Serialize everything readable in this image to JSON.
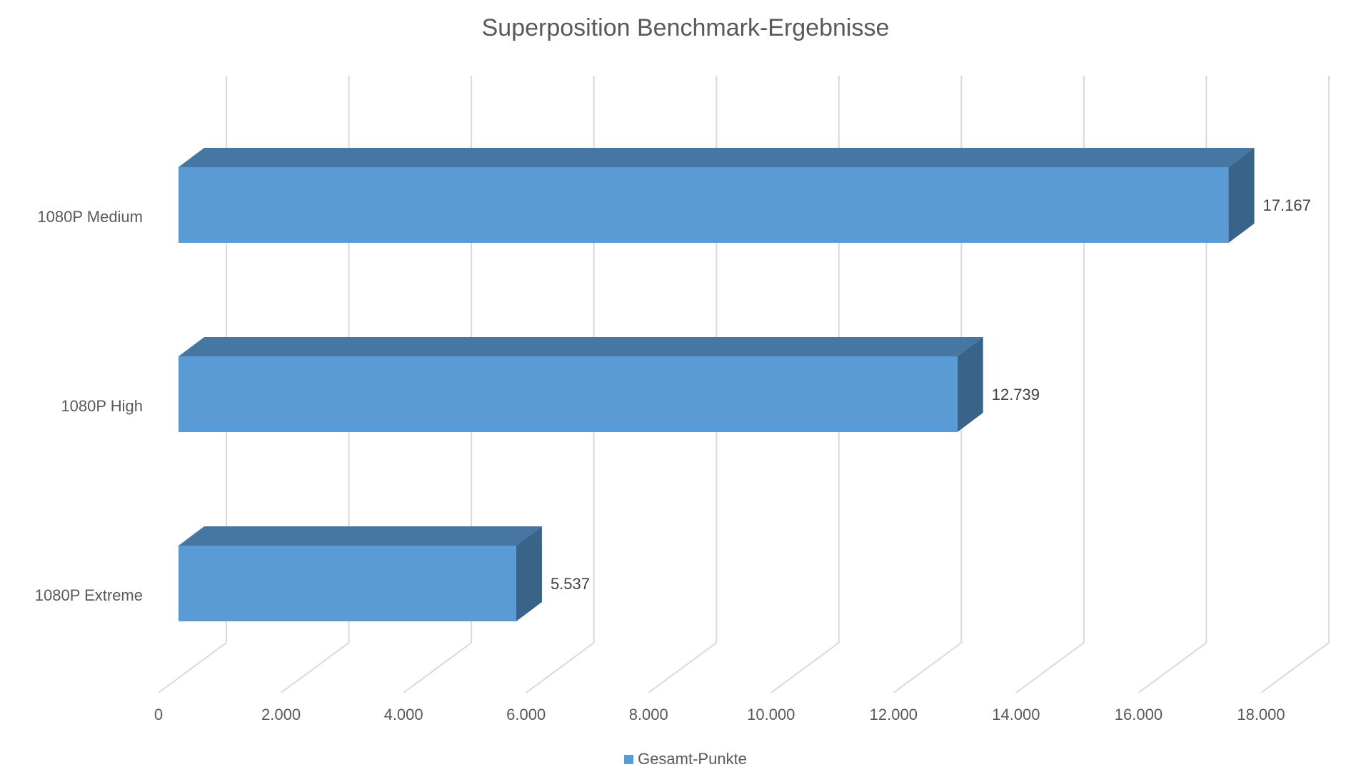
{
  "chart_data": {
    "type": "bar",
    "orientation": "horizontal",
    "three_d": true,
    "title": "Superposition Benchmark-Ergebnisse",
    "categories": [
      "1080P Medium",
      "1080P High",
      "1080P Extreme"
    ],
    "series": [
      {
        "name": "Gesamt-Punkte",
        "values": [
          17167,
          12739,
          5537
        ],
        "data_labels": [
          "17.167",
          "12.739",
          "5.537"
        ],
        "color": "#5b9bd5"
      }
    ],
    "xlim": [
      0,
      18000
    ],
    "x_ticks": [
      0,
      2000,
      4000,
      6000,
      8000,
      10000,
      12000,
      14000,
      16000,
      18000
    ],
    "x_tick_labels": [
      "0",
      "2.000",
      "4.000",
      "6.000",
      "8.000",
      "10.000",
      "12.000",
      "14.000",
      "16.000",
      "18.000"
    ],
    "grid": true,
    "legend_position": "bottom"
  },
  "colors": {
    "bar_front": "#5b9bd5",
    "bar_top": "#4677a3",
    "bar_side": "#3a6389",
    "grid": "#d9d9d9",
    "text": "#595959",
    "label": "#404040"
  }
}
